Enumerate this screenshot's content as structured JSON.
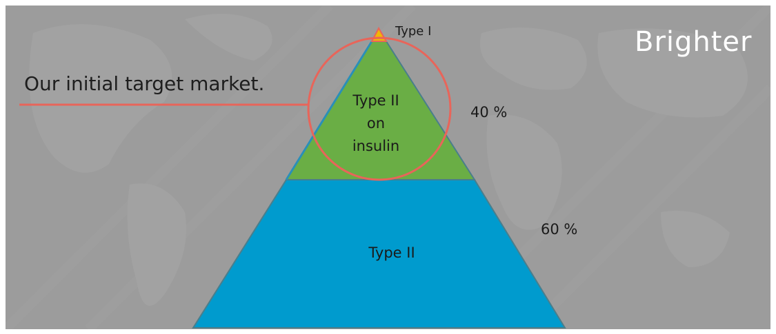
{
  "brand": {
    "logo_text": "Brighter"
  },
  "callout": {
    "text": "Our initial target market."
  },
  "pyramid": {
    "tiers": [
      {
        "label": "Type I",
        "color": "#f2b705"
      },
      {
        "label": "Type II on insulin",
        "lines": [
          "Type II",
          "on",
          "insulin"
        ],
        "color": "#6aae45",
        "percent": "40 %"
      },
      {
        "label": "Type II",
        "color": "#009bce",
        "percent": "60 %"
      }
    ]
  },
  "colors": {
    "background": "#9c9c9c",
    "highlight": "#e8655a",
    "outline": "#4a7e8c"
  }
}
